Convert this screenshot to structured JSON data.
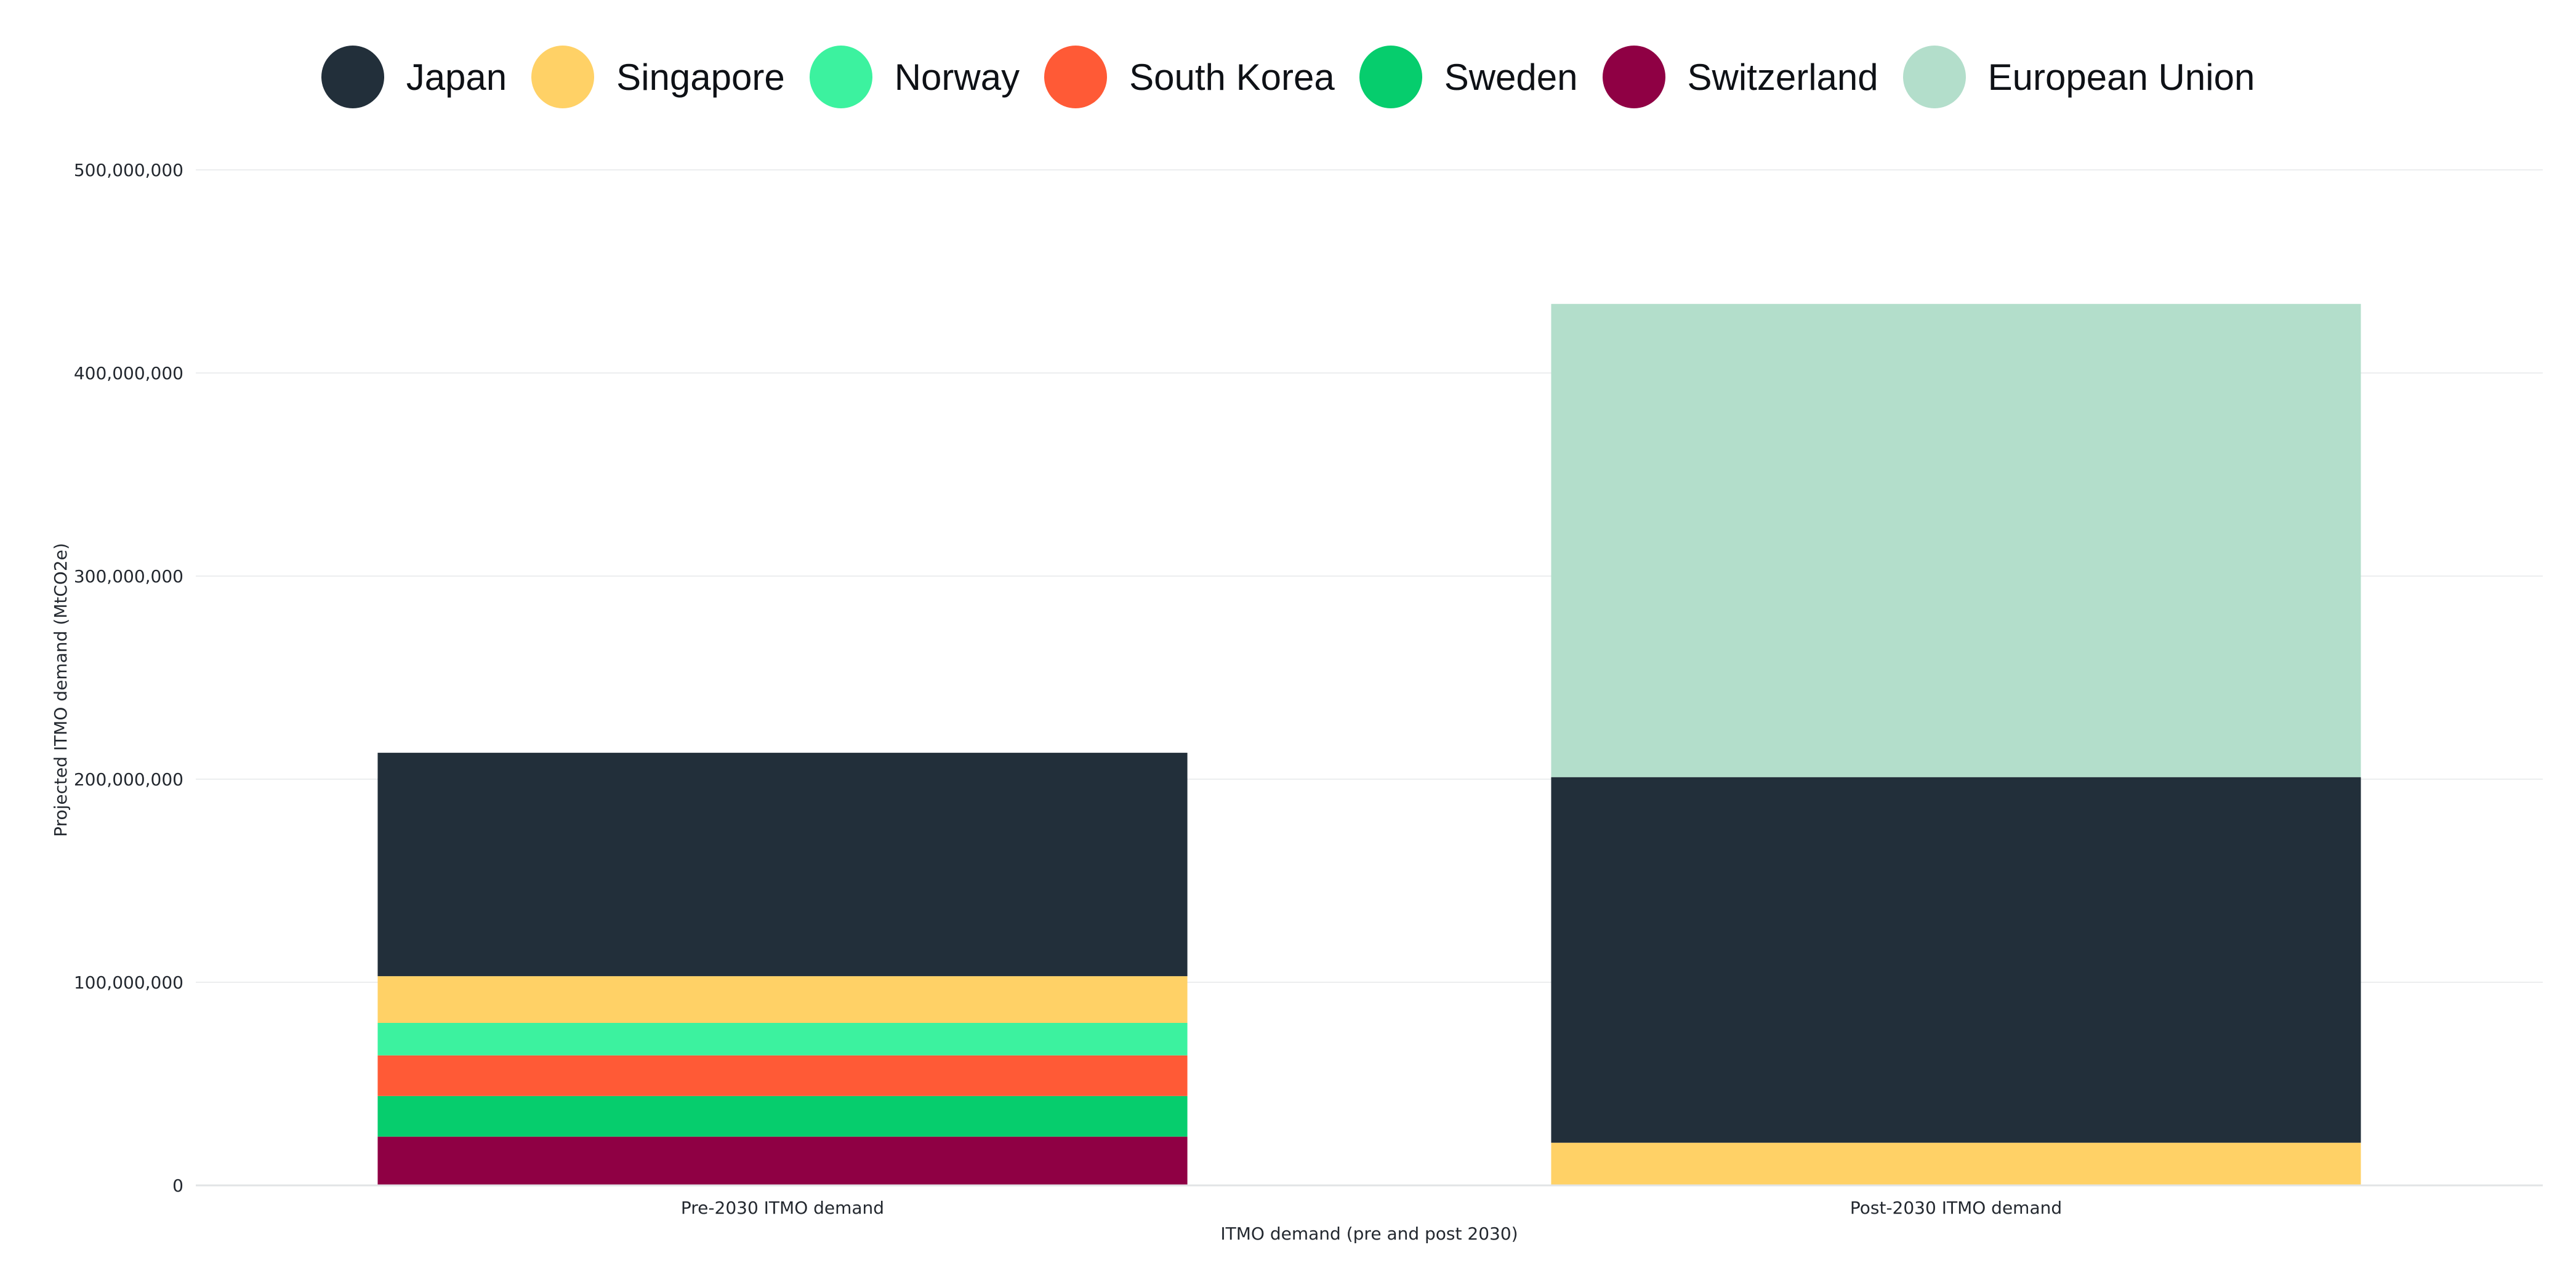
{
  "chart_data": {
    "type": "bar",
    "stacked": true,
    "categories": [
      "Pre-2030 ITMO demand",
      "Post-2030 ITMO demand"
    ],
    "series": [
      {
        "name": "Switzerland",
        "color": "#8f0044",
        "values": [
          24000000,
          0
        ]
      },
      {
        "name": "Sweden",
        "color": "#06cd6d",
        "values": [
          20000000,
          0
        ]
      },
      {
        "name": "South Korea",
        "color": "#ff5a36",
        "values": [
          20000000,
          0
        ]
      },
      {
        "name": "Norway",
        "color": "#3cf29f",
        "values": [
          16000000,
          0
        ]
      },
      {
        "name": "Singapore",
        "color": "#ffd166",
        "values": [
          23000000,
          21000000
        ]
      },
      {
        "name": "Japan",
        "color": "#222f3a",
        "values": [
          110000000,
          180000000
        ]
      },
      {
        "name": "European Union",
        "color": "#b3decb",
        "values": [
          0,
          233000000
        ]
      }
    ],
    "legend": {
      "placement": "top-center",
      "order": [
        "Japan",
        "Singapore",
        "Norway",
        "South Korea",
        "Sweden",
        "Switzerland",
        "European Union"
      ]
    },
    "xlabel": "ITMO demand (pre and post 2030)",
    "ylabel": "Projected ITMO demand (MtCO2e)",
    "ylim": [
      0,
      500000000
    ],
    "yticks": [
      0,
      100000000,
      200000000,
      300000000,
      400000000,
      500000000
    ],
    "ytick_labels": [
      "0",
      "100,000,000",
      "200,000,000",
      "300,000,000",
      "400,000,000",
      "500,000,000"
    ],
    "grid": true
  }
}
